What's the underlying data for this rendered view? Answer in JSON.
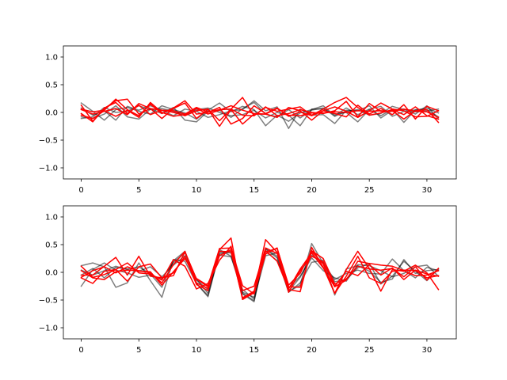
{
  "colors": {
    "gray_series": "#000000",
    "red_series": "#ff0000",
    "axes": "#000000",
    "background": "#ffffff"
  },
  "chart_data": [
    {
      "type": "line",
      "x": [
        0,
        1,
        2,
        3,
        4,
        5,
        6,
        7,
        8,
        9,
        10,
        11,
        12,
        13,
        14,
        15,
        16,
        17,
        18,
        19,
        20,
        21,
        22,
        23,
        24,
        25,
        26,
        27,
        28,
        29,
        30,
        31
      ],
      "xlim": [
        -1.55,
        32.55
      ],
      "ylim": [
        -1.2,
        1.2
      ],
      "xticks": [
        0,
        5,
        10,
        15,
        20,
        25,
        30
      ],
      "yticks": [
        -1.0,
        -0.5,
        0.0,
        0.5,
        1.0
      ],
      "xtick_labels": [
        "0",
        "5",
        "10",
        "15",
        "20",
        "25",
        "30"
      ],
      "ytick_labels": [
        "−1.0",
        "−0.5",
        "0.0",
        "0.5",
        "1.0"
      ],
      "grid": false,
      "series": [
        {
          "group": "gray",
          "values": [
            0.17,
            0.02,
            -0.14,
            0.05,
            0.09,
            0.02,
            -0.03,
            0.12,
            0.05,
            -0.01,
            -0.12,
            0.04,
            0.17,
            0.01,
            0.11,
            0.05,
            -0.24,
            -0.05,
            -0.16,
            -0.01,
            0.05,
            0.12,
            -0.06,
            0.08,
            -0.04,
            0.06,
            0.11,
            -0.07,
            0.02,
            0.01,
            0.03,
            0.06
          ]
        },
        {
          "group": "gray",
          "values": [
            -0.08,
            -0.11,
            -0.03,
            0.12,
            -0.08,
            -0.12,
            0.06,
            -0.02,
            0.09,
            -0.14,
            -0.17,
            0.02,
            0.04,
            -0.09,
            0.07,
            0.18,
            -0.03,
            -0.08,
            0.05,
            -0.1,
            0.04,
            0.08,
            -0.07,
            0.02,
            0.05,
            -0.05,
            -0.02,
            0.11,
            0.05,
            0.04,
            0.08,
            -0.01
          ]
        },
        {
          "group": "gray",
          "values": [
            0.08,
            -0.05,
            0.03,
            -0.14,
            0.11,
            0.04,
            0.12,
            0.04,
            -0.06,
            0.06,
            0.02,
            -0.09,
            -0.04,
            0.03,
            0.05,
            0.21,
            0.03,
            0.1,
            -0.29,
            0.06,
            -0.05,
            -0.04,
            -0.2,
            0.04,
            0.03,
            0.12,
            -0.1,
            0.04,
            0.06,
            -0.03,
            0.12,
            -0.12
          ]
        },
        {
          "group": "gray",
          "values": [
            -0.11,
            -0.08,
            0.09,
            0.0,
            0.02,
            0.12,
            0.05,
            0.07,
            0.02,
            -0.05,
            0.05,
            0.08,
            0.0,
            -0.06,
            -0.04,
            0.04,
            -0.1,
            0.0,
            -0.05,
            -0.24,
            0.06,
            0.06,
            -0.03,
            0.0,
            -0.17,
            0.05,
            -0.06,
            0.06,
            -0.18,
            0.05,
            0.05,
            -0.08
          ]
        },
        {
          "group": "red",
          "values": [
            0.13,
            -0.16,
            0.07,
            0.21,
            0.24,
            -0.03,
            0.07,
            -0.11,
            0.07,
            0.17,
            -0.11,
            0.06,
            -0.25,
            0.05,
            -0.21,
            -0.03,
            -0.03,
            -0.09,
            0.09,
            0.03,
            -0.14,
            0.03,
            0.1,
            0.02,
            -0.09,
            0.03,
            0.17,
            0.06,
            0.03,
            -0.08,
            -0.07,
            0.03
          ]
        },
        {
          "group": "red",
          "values": [
            -0.02,
            -0.17,
            0.08,
            0.18,
            -0.02,
            0.13,
            -0.04,
            0.04,
            0.0,
            -0.06,
            0.03,
            0.06,
            -0.15,
            0.06,
            0.27,
            -0.06,
            0.1,
            -0.06,
            -0.02,
            0.05,
            0.0,
            -0.02,
            0.03,
            0.2,
            -0.08,
            0.16,
            0.02,
            0.03,
            -0.12,
            0.03,
            0.05,
            -0.18
          ]
        },
        {
          "group": "red",
          "values": [
            0.06,
            0.01,
            0.04,
            0.24,
            0.05,
            -0.06,
            0.15,
            -0.02,
            0.08,
            0.21,
            -0.03,
            0.0,
            0.09,
            -0.21,
            -0.11,
            0.12,
            -0.02,
            0.08,
            -0.07,
            0.01,
            -0.06,
            0.03,
            -0.02,
            -0.08,
            0.13,
            -0.03,
            0.07,
            -0.04,
            0.14,
            -0.12,
            0.11,
            0.03
          ]
        },
        {
          "group": "red",
          "values": [
            0.05,
            -0.03,
            0.02,
            0.07,
            -0.04,
            0.16,
            0.07,
            0.04,
            0.03,
            -0.03,
            0.09,
            0.01,
            0.05,
            0.06,
            -0.05,
            -0.06,
            0.09,
            0.02,
            0.06,
            0.1,
            -0.05,
            0.06,
            0.18,
            0.27,
            0.09,
            -0.05,
            -0.01,
            0.05,
            -0.04,
            0.1,
            -0.06,
            -0.12
          ]
        },
        {
          "group": "red",
          "values": [
            -0.05,
            -0.11,
            0.03,
            -0.07,
            0.04,
            -0.09,
            0.18,
            0.0,
            -0.07,
            -0.04,
            0.07,
            -0.03,
            0.04,
            0.12,
            0.04,
            -0.02,
            -0.03,
            0.07,
            -0.05,
            -0.06,
            -0.01,
            -0.01,
            0.01,
            0.0,
            0.03,
            0.02,
            0.03,
            0.02,
            0.06,
            0.02,
            0.01,
            -0.09
          ]
        }
      ]
    },
    {
      "type": "line",
      "x": [
        0,
        1,
        2,
        3,
        4,
        5,
        6,
        7,
        8,
        9,
        10,
        11,
        12,
        13,
        14,
        15,
        16,
        17,
        18,
        19,
        20,
        21,
        22,
        23,
        24,
        25,
        26,
        27,
        28,
        29,
        30,
        31
      ],
      "xlim": [
        -1.55,
        32.55
      ],
      "ylim": [
        -1.2,
        1.2
      ],
      "xticks": [
        0,
        5,
        10,
        15,
        20,
        25,
        30
      ],
      "yticks": [
        -1.0,
        -0.5,
        0.0,
        0.5,
        1.0
      ],
      "xtick_labels": [
        "0",
        "5",
        "10",
        "15",
        "20",
        "25",
        "30"
      ],
      "ytick_labels": [
        "−1.0",
        "−0.5",
        "0.0",
        "0.5",
        "1.0"
      ],
      "grid": false,
      "series": [
        {
          "group": "gray",
          "values": [
            0.12,
            0.17,
            0.1,
            -0.27,
            -0.19,
            0.17,
            -0.15,
            -0.45,
            0.23,
            0.2,
            -0.2,
            -0.42,
            0.41,
            0.29,
            -0.38,
            -0.51,
            0.43,
            0.29,
            -0.35,
            -0.23,
            0.52,
            0.16,
            -0.13,
            -0.02,
            0.04,
            -0.02,
            -0.03,
            0.24,
            0.03,
            -0.1,
            0.09,
            0.03
          ]
        },
        {
          "group": "gray",
          "values": [
            -0.25,
            0.05,
            0.17,
            0.04,
            -0.01,
            -0.09,
            -0.05,
            -0.12,
            0.18,
            0.35,
            -0.12,
            -0.38,
            0.33,
            0.38,
            -0.36,
            -0.45,
            0.38,
            0.21,
            -0.28,
            -0.07,
            0.26,
            0.03,
            -0.1,
            -0.16,
            0.14,
            0.12,
            0.03,
            -0.08,
            -0.02,
            0.1,
            0.13,
            -0.07
          ]
        },
        {
          "group": "gray",
          "values": [
            0.04,
            -0.05,
            0.03,
            0.11,
            0.05,
            0.02,
            0.1,
            -0.08,
            0.13,
            0.3,
            -0.14,
            -0.31,
            0.31,
            0.28,
            -0.31,
            -0.48,
            0.3,
            0.35,
            -0.34,
            -0.09,
            0.31,
            0.18,
            -0.17,
            -0.13,
            0.08,
            0.16,
            -0.21,
            -0.07,
            0.2,
            0.02,
            -0.15,
            0.07
          ]
        },
        {
          "group": "gray",
          "values": [
            -0.05,
            0.07,
            -0.1,
            0.09,
            0.06,
            0.1,
            -0.03,
            -0.27,
            0.21,
            0.38,
            -0.2,
            -0.44,
            0.36,
            0.35,
            -0.39,
            -0.53,
            0.42,
            0.26,
            -0.36,
            -0.19,
            0.18,
            0.22,
            -0.41,
            0.06,
            0.12,
            0.02,
            -0.18,
            -0.12,
            0.23,
            -0.02,
            0.03,
            0.05
          ]
        },
        {
          "group": "red",
          "values": [
            -0.05,
            -0.05,
            0.11,
            0.27,
            -0.05,
            0.29,
            -0.07,
            -0.1,
            -0.01,
            0.29,
            -0.22,
            -0.33,
            0.41,
            0.62,
            -0.49,
            -0.37,
            0.39,
            0.2,
            -0.31,
            -0.35,
            0.45,
            0.09,
            -0.38,
            0.05,
            0.38,
            0.07,
            -0.34,
            0.05,
            0.02,
            0.13,
            -0.01,
            -0.31
          ]
        },
        {
          "group": "red",
          "values": [
            -0.1,
            -0.2,
            0.02,
            0.05,
            -0.16,
            0.1,
            0.15,
            -0.1,
            -0.06,
            0.37,
            -0.12,
            -0.26,
            0.3,
            0.41,
            -0.48,
            -0.36,
            0.59,
            0.36,
            -0.26,
            -0.27,
            0.38,
            0.15,
            -0.38,
            -0.07,
            0.29,
            -0.1,
            -0.2,
            0.02,
            0.04,
            0.03,
            -0.1,
            -0.06
          ]
        },
        {
          "group": "red",
          "values": [
            -0.09,
            0.03,
            0.1,
            -0.01,
            0.1,
            0.02,
            0.01,
            -0.23,
            0.01,
            0.25,
            -0.11,
            -0.24,
            0.43,
            0.44,
            -0.24,
            -0.39,
            0.33,
            0.44,
            -0.3,
            0.06,
            0.35,
            0.08,
            -0.26,
            -0.14,
            0.2,
            0.16,
            0.13,
            0.11,
            0.03,
            -0.06,
            -0.05,
            0.03
          ]
        },
        {
          "group": "red",
          "values": [
            0.03,
            -0.1,
            -0.13,
            0.01,
            0.04,
            0.03,
            -0.01,
            -0.19,
            0.14,
            0.38,
            -0.19,
            -0.29,
            0.38,
            0.37,
            -0.46,
            -0.34,
            0.37,
            0.43,
            -0.23,
            -0.02,
            0.39,
            0.25,
            -0.21,
            -0.12,
            0.11,
            0.06,
            0.04,
            0.07,
            -0.08,
            0.1,
            -0.14,
            0.07
          ]
        },
        {
          "group": "red",
          "values": [
            0.11,
            -0.09,
            -0.04,
            0.05,
            0.17,
            -0.01,
            -0.03,
            -0.14,
            0.23,
            0.11,
            -0.3,
            -0.2,
            0.22,
            0.47,
            -0.33,
            -0.25,
            0.44,
            0.34,
            -0.36,
            0.03,
            0.29,
            0.19,
            -0.25,
            0.02,
            -0.06,
            0.14,
            -0.05,
            0.08,
            -0.13,
            0.04,
            -0.03,
            -0.07
          ]
        }
      ]
    }
  ]
}
